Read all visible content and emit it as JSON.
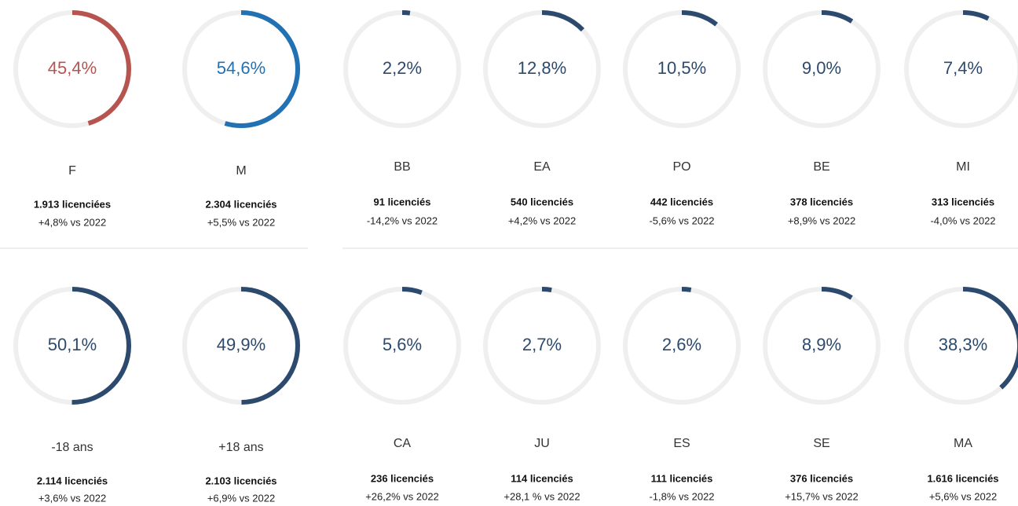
{
  "gauges": [
    {
      "value": 45.4,
      "value_label": "45,4%",
      "name": "F",
      "count": "1.913 licenciées",
      "change": "+4,8% vs 2022",
      "color": "#b85450"
    },
    {
      "value": 54.6,
      "value_label": "54,6%",
      "name": "M",
      "count": "2.304 licenciés",
      "change": "+5,5% vs 2022",
      "color": "#2271b3"
    },
    {
      "value": 2.2,
      "value_label": "2,2%",
      "name": "BB",
      "count": "91 licenciés",
      "change": "-14,2% vs 2022",
      "color": "#2c4a6e"
    },
    {
      "value": 12.8,
      "value_label": "12,8%",
      "name": "EA",
      "count": "540 licenciés",
      "change": "+4,2% vs 2022",
      "color": "#2c4a6e"
    },
    {
      "value": 10.5,
      "value_label": "10,5%",
      "name": "PO",
      "count": "442 licenciés",
      "change": "-5,6% vs 2022",
      "color": "#2c4a6e"
    },
    {
      "value": 9.0,
      "value_label": "9,0%",
      "name": "BE",
      "count": "378 licenciés",
      "change": "+8,9% vs 2022",
      "color": "#2c4a6e"
    },
    {
      "value": 7.4,
      "value_label": "7,4%",
      "name": "MI",
      "count": "313 licenciés",
      "change": "-4,0% vs 2022",
      "color": "#2c4a6e"
    },
    {
      "value": 50.1,
      "value_label": "50,1%",
      "name": "-18 ans",
      "count": "2.114 licenciés",
      "change": "+3,6% vs 2022",
      "color": "#2c4a6e"
    },
    {
      "value": 49.9,
      "value_label": "49,9%",
      "name": "+18 ans",
      "count": "2.103 licenciés",
      "change": "+6,9% vs 2022",
      "color": "#2c4a6e"
    },
    {
      "value": 5.6,
      "value_label": "5,6%",
      "name": "CA",
      "count": "236 licenciés",
      "change": "+26,2% vs 2022",
      "color": "#2c4a6e"
    },
    {
      "value": 2.7,
      "value_label": "2,7%",
      "name": "JU",
      "count": "114 licenciés",
      "change": "+28,1 % vs 2022",
      "color": "#2c4a6e"
    },
    {
      "value": 2.6,
      "value_label": "2,6%",
      "name": "ES",
      "count": "111 licenciés",
      "change": "-1,8% vs 2022",
      "color": "#2c4a6e"
    },
    {
      "value": 8.9,
      "value_label": "8,9%",
      "name": "SE",
      "count": "376 licenciés",
      "change": "+15,7% vs 2022",
      "color": "#2c4a6e"
    },
    {
      "value": 38.3,
      "value_label": "38,3%",
      "name": "MA",
      "count": "1.616 licenciés",
      "change": "+5,6% vs 2022",
      "color": "#2c4a6e"
    }
  ]
}
